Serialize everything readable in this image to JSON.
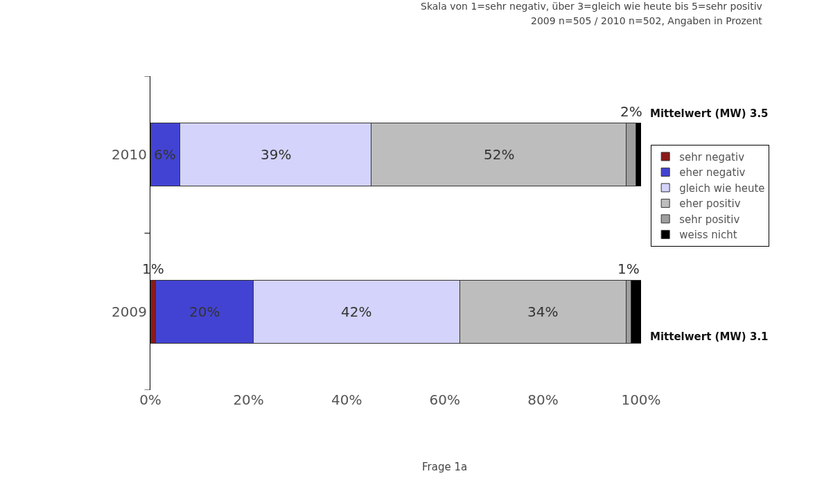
{
  "chart_data": {
    "type": "bar",
    "orientation": "horizontal",
    "stacked": true,
    "categories": [
      "2010",
      "2009"
    ],
    "series": [
      {
        "name": "sehr negativ",
        "color": "#8b1a1a",
        "values": [
          null,
          1
        ],
        "value_labels": [
          null,
          "1%"
        ]
      },
      {
        "name": "eher negativ",
        "color": "#4343d3",
        "values": [
          6,
          20
        ],
        "value_labels": [
          "6%",
          "20%"
        ]
      },
      {
        "name": "gleich wie heute",
        "color": "#d3d3fb",
        "values": [
          39,
          42
        ],
        "value_labels": [
          "39%",
          "42%"
        ]
      },
      {
        "name": "eher positiv",
        "color": "#bdbdbd",
        "values": [
          52,
          34
        ],
        "value_labels": [
          "52%",
          "34%"
        ]
      },
      {
        "name": "sehr positiv",
        "color": "#9e9e9e",
        "values": [
          2,
          1
        ],
        "value_labels": [
          "2%",
          "1%"
        ]
      },
      {
        "name": "weiss nicht",
        "color": "#000000",
        "values": [
          1,
          2
        ],
        "value_labels": [
          null,
          null
        ]
      }
    ],
    "xlim": [
      0,
      100
    ],
    "xticks": [
      {
        "value": 0,
        "label": "0%"
      },
      {
        "value": 20,
        "label": "20%"
      },
      {
        "value": 40,
        "label": "40%"
      },
      {
        "value": 60,
        "label": "60%"
      },
      {
        "value": 80,
        "label": "80%"
      },
      {
        "value": 100,
        "label": "100%"
      }
    ],
    "legend": "right",
    "grid": false,
    "annotations": [
      "Skala von 1=sehr negativ, über 3=gleich wie heute bis 5=sehr positiv",
      "2009 n=505 / 2010 n=502, Angaben in Prozent",
      "Mittelwert (MW) 3.5",
      "Mittelwert (MW) 3.1",
      "Frage 1a"
    ]
  }
}
